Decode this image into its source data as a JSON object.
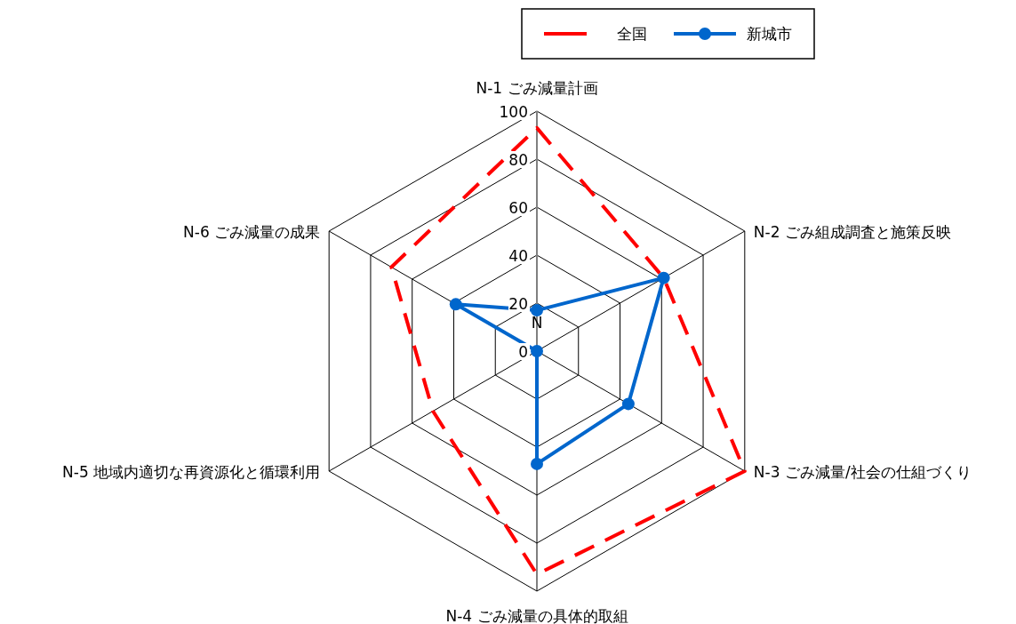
{
  "chart_data": {
    "type": "radar",
    "categories": [
      "N-1 ごみ減量計画",
      "N-2 ごみ組成調査と施策反映",
      "N-3 ごみ減量/社会の仕組づくり",
      "N-4 ごみ減量の具体的取組",
      "N-5 地域内適切な再資源化と循環利用",
      "N-6 ごみ減量の成果"
    ],
    "series": [
      {
        "name": "全国",
        "color": "#ff0000",
        "values": [
          93,
          61,
          100,
          93,
          50,
          70
        ],
        "line_style": "dashed",
        "marker": "none"
      },
      {
        "name": "新城市",
        "color": "#0066cc",
        "values": [
          17,
          61,
          44,
          47,
          0,
          39
        ],
        "line_style": "solid",
        "marker": "circle"
      }
    ],
    "ylim": [
      0,
      100
    ],
    "yticks": [
      0,
      20,
      40,
      60,
      80,
      100
    ],
    "grid": true,
    "legend": "top",
    "annotations": [
      "N"
    ]
  }
}
